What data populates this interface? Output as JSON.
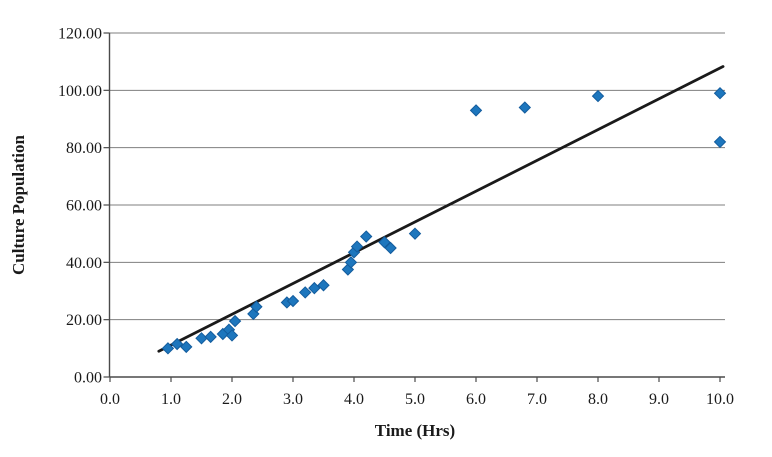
{
  "chart_data": {
    "type": "scatter",
    "title": "",
    "xlabel": "Time (Hrs)",
    "ylabel": "Culture Population",
    "xlim": [
      0,
      10
    ],
    "ylim": [
      0,
      120
    ],
    "x_tick_labels": [
      "0.0",
      "1.0",
      "2.0",
      "3.0",
      "4.0",
      "5.0",
      "6.0",
      "7.0",
      "8.0",
      "9.0",
      "10.0"
    ],
    "y_tick_labels": [
      "0.00",
      "20.00",
      "40.00",
      "60.00",
      "80.00",
      "100.00",
      "120.00"
    ],
    "grid": "horizontal",
    "legend": "none",
    "marker": "diamond",
    "colors": {
      "marker_fill": "#1d76bd",
      "marker_edge": "#135c9d",
      "trend_line": "#1a1a1a",
      "gridline": "#7f7f7f",
      "axis": "#4a4a4a",
      "text": "#1a1a1a",
      "background": "#ffffff"
    },
    "series": [
      {
        "name": "culture-population-observations",
        "type": "scatter",
        "points": [
          [
            0.95,
            10
          ],
          [
            1.1,
            11.5
          ],
          [
            1.25,
            10.5
          ],
          [
            1.5,
            13.5
          ],
          [
            1.65,
            14
          ],
          [
            1.85,
            15
          ],
          [
            1.95,
            16.5
          ],
          [
            2.0,
            14.5
          ],
          [
            2.05,
            19.5
          ],
          [
            2.35,
            22
          ],
          [
            2.4,
            24.5
          ],
          [
            2.9,
            26
          ],
          [
            3.0,
            26.5
          ],
          [
            3.2,
            29.5
          ],
          [
            3.35,
            31
          ],
          [
            3.5,
            32
          ],
          [
            3.9,
            37.5
          ],
          [
            3.95,
            40
          ],
          [
            4.0,
            43.5
          ],
          [
            4.05,
            45.5
          ],
          [
            4.2,
            49
          ],
          [
            4.5,
            47
          ],
          [
            4.6,
            45
          ],
          [
            5.0,
            50
          ],
          [
            6.0,
            93
          ],
          [
            6.8,
            94
          ],
          [
            8.0,
            98
          ],
          [
            10.0,
            99
          ],
          [
            10.0,
            82
          ]
        ]
      },
      {
        "name": "linear-trend-line",
        "type": "line",
        "points": [
          [
            0.8,
            9
          ],
          [
            10.05,
            108.3
          ]
        ]
      }
    ]
  }
}
